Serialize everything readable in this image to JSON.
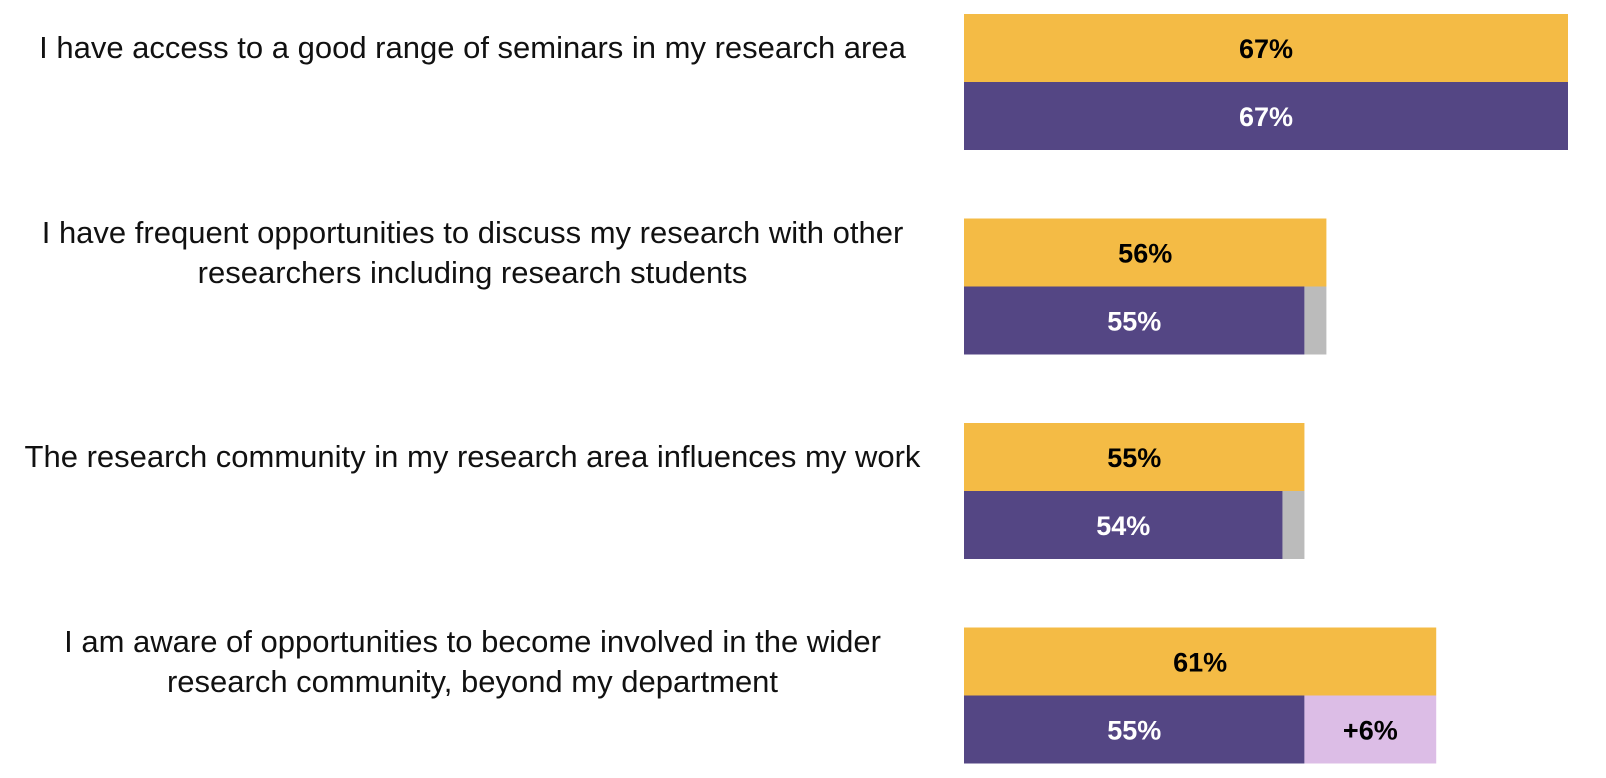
{
  "chart_data": {
    "type": "paired-bar",
    "categories": [
      "I have access to a good range of seminars in my research area",
      "I have frequent opportunities to discuss my research with other researchers including research students",
      "The research community in my research area influences my work",
      "I am aware of opportunities to become involved in the wider research community, beyond my department"
    ],
    "series": [
      {
        "color": "#f4bb45",
        "label_color": "#000000",
        "values": [
          67,
          56,
          55,
          61
        ],
        "value_labels": [
          "67%",
          "56%",
          "55%",
          "61%"
        ]
      },
      {
        "color": "#544684",
        "label_color": "#ffffff",
        "values": [
          67,
          55,
          54,
          55
        ],
        "value_labels": [
          "67%",
          "55%",
          "54%",
          "55%"
        ]
      },
      {
        "colors": [
          "#bbbbbb",
          "#bbbbbb",
          "#bbbbbb",
          "#dcbde6"
        ],
        "label_color": "#000000",
        "values": [
          0,
          1,
          1,
          6
        ],
        "value_labels": [
          null,
          null,
          null,
          "+6%"
        ]
      }
    ],
    "xlim": [
      39.5,
      67
    ]
  }
}
